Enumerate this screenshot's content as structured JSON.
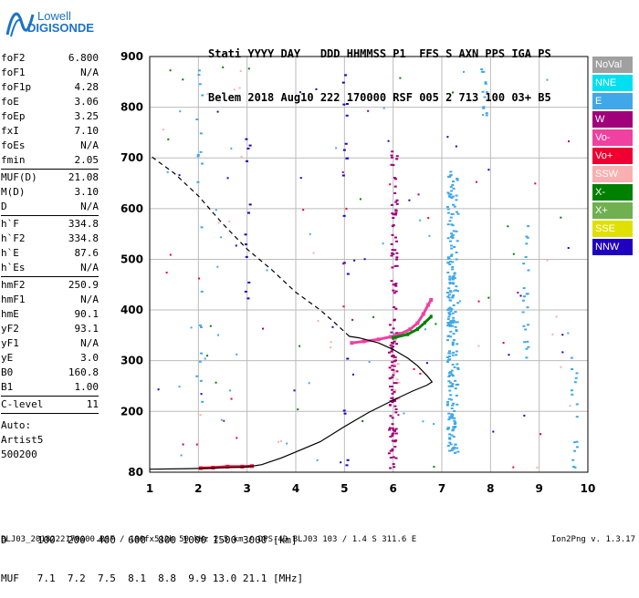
{
  "logo": {
    "line1": "Lowell",
    "line2": "DIGISONDE"
  },
  "header": {
    "line1": "Stati YYYY DAY   DDD HHMMSS P1  FFS S AXN PPS IGA PS",
    "line2": "Belem 2018 Aug10 222 170000 RSF 005 2 713 100 03+ B5"
  },
  "params": {
    "group1": [
      {
        "name": "foF2",
        "value": "6.800"
      },
      {
        "name": "foF1",
        "value": "N/A"
      },
      {
        "name": "foF1p",
        "value": "4.28"
      },
      {
        "name": "foE",
        "value": "3.06"
      },
      {
        "name": "foEp",
        "value": "3.25"
      },
      {
        "name": "fxI",
        "value": "7.10"
      },
      {
        "name": "foEs",
        "value": "N/A"
      },
      {
        "name": "fmin",
        "value": "2.05"
      }
    ],
    "group2": [
      {
        "name": "MUF(D)",
        "value": "21.08"
      },
      {
        "name": "M(D)",
        "value": "3.10"
      },
      {
        "name": "D",
        "value": "N/A"
      }
    ],
    "group3": [
      {
        "name": "h`F",
        "value": "334.8"
      },
      {
        "name": "h`F2",
        "value": "334.8"
      },
      {
        "name": "h`E",
        "value": "87.6"
      },
      {
        "name": "h`Es",
        "value": "N/A"
      }
    ],
    "group4": [
      {
        "name": "hmF2",
        "value": "250.9"
      },
      {
        "name": "hmF1",
        "value": "N/A"
      },
      {
        "name": "hmE",
        "value": "90.1"
      },
      {
        "name": "yF2",
        "value": "93.1"
      },
      {
        "name": "yF1",
        "value": "N/A"
      },
      {
        "name": "yE",
        "value": "3.0"
      },
      {
        "name": "B0",
        "value": "160.8"
      },
      {
        "name": "B1",
        "value": "1.00"
      }
    ],
    "group5": [
      {
        "name": "C-level",
        "value": "11"
      }
    ],
    "auto": [
      "Auto:",
      "Artist5",
      "500200"
    ]
  },
  "legend": [
    {
      "label": "NoVal",
      "color": "#a0a0a0"
    },
    {
      "label": "NNE",
      "color": "#00e0f0"
    },
    {
      "label": "E",
      "color": "#40a8e8"
    },
    {
      "label": "W",
      "color": "#a0007a"
    },
    {
      "label": "Vo-",
      "color": "#f040a0"
    },
    {
      "label": "Vo+",
      "color": "#f00030"
    },
    {
      "label": "SSW",
      "color": "#f8b0b0"
    },
    {
      "label": "X-",
      "color": "#008000"
    },
    {
      "label": "X+",
      "color": "#70b050"
    },
    {
      "label": "SSE",
      "color": "#e0e000"
    },
    {
      "label": "NNW",
      "color": "#2000c0"
    }
  ],
  "muf_table": {
    "row1": "D     100  200  400  600  800 1000 1500 3000 [km]",
    "row2": "MUF   7.1  7.2  7.5  8.1  8.8  9.9 13.0 21.1 [MHz]"
  },
  "footer": {
    "left": "BLJ03_2018222170000.RSF / 180fx512h 50 kHz 2.5 km / DPS-4D BLJ03 103 / 1.4 S 311.6 E",
    "right": "Ion2Png v. 1.3.17"
  },
  "chart_data": {
    "type": "scatter",
    "xlim": [
      1,
      10
    ],
    "ylim": [
      80,
      900
    ],
    "xticks": [
      1,
      2,
      3,
      4,
      5,
      6,
      7,
      8,
      9,
      10
    ],
    "yticks": [
      80,
      200,
      300,
      400,
      500,
      600,
      700,
      800,
      900
    ],
    "grid": true,
    "trace_F2_ordinary": [
      [
        5.15,
        335
      ],
      [
        5.4,
        338
      ],
      [
        5.7,
        342
      ],
      [
        5.95,
        347
      ],
      [
        6.15,
        353
      ],
      [
        6.35,
        362
      ],
      [
        6.5,
        374
      ],
      [
        6.62,
        392
      ],
      [
        6.72,
        410
      ],
      [
        6.78,
        420
      ]
    ],
    "trace_X_extraordinary": [
      [
        6.0,
        345
      ],
      [
        6.3,
        352
      ],
      [
        6.5,
        362
      ],
      [
        6.65,
        375
      ],
      [
        6.78,
        387
      ]
    ],
    "trace_E_layer": [
      [
        2.05,
        88
      ],
      [
        2.3,
        89
      ],
      [
        2.6,
        91
      ],
      [
        2.9,
        91
      ],
      [
        3.1,
        92
      ]
    ],
    "profile_solid": [
      [
        1.0,
        86
      ],
      [
        1.8,
        87
      ],
      [
        2.6,
        89
      ],
      [
        2.9,
        90
      ],
      [
        3.05,
        91
      ],
      [
        3.3,
        95
      ],
      [
        3.7,
        108
      ],
      [
        4.0,
        120
      ],
      [
        4.5,
        140
      ],
      [
        5.0,
        170
      ],
      [
        5.5,
        198
      ],
      [
        6.0,
        222
      ],
      [
        6.4,
        240
      ],
      [
        6.7,
        252
      ],
      [
        6.8,
        258
      ],
      [
        6.7,
        270
      ],
      [
        6.5,
        290
      ],
      [
        6.3,
        305
      ],
      [
        6.0,
        322
      ],
      [
        5.7,
        335
      ],
      [
        5.3,
        345
      ],
      [
        5.1,
        348
      ]
    ],
    "profile_dashed": [
      [
        5.1,
        348
      ],
      [
        4.8,
        375
      ],
      [
        4.5,
        400
      ],
      [
        4.0,
        435
      ],
      [
        3.5,
        480
      ],
      [
        3.0,
        520
      ],
      [
        2.5,
        570
      ],
      [
        2.0,
        625
      ],
      [
        1.5,
        670
      ],
      [
        1.0,
        705
      ]
    ]
  }
}
